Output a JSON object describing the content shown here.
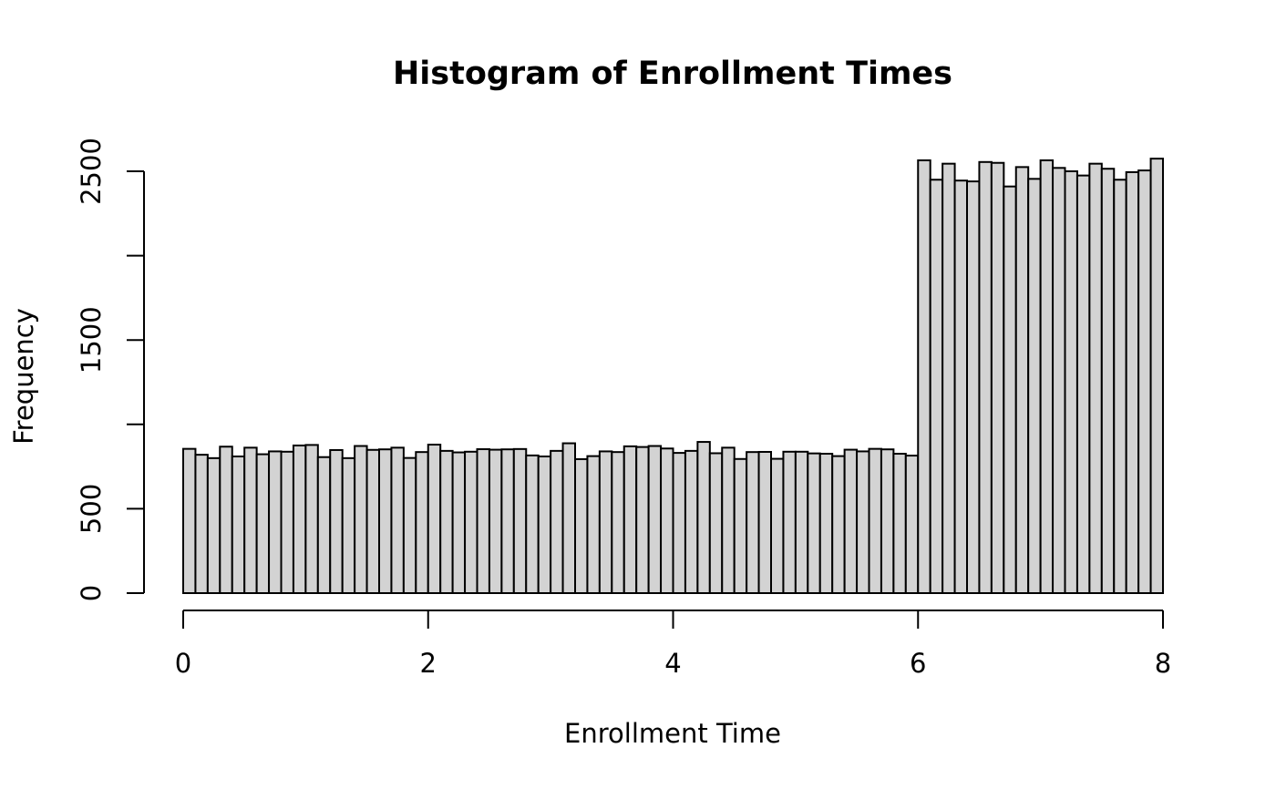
{
  "chart_data": {
    "type": "bar",
    "title": "Histogram of Enrollment Times",
    "xlabel": "Enrollment Time",
    "ylabel": "Frequency",
    "xlim": [
      0,
      8
    ],
    "ylim": [
      0,
      2500
    ],
    "xticks": [
      "0",
      "2",
      "4",
      "6",
      "8"
    ],
    "yticks": [
      "0",
      "500",
      "1500",
      "2500"
    ],
    "bin_width": 0.1,
    "bin_start": 0,
    "bar_color": "#d3d3d3",
    "edge_color": "#000000",
    "values": [
      855,
      820,
      800,
      868,
      810,
      862,
      823,
      840,
      838,
      875,
      878,
      806,
      848,
      800,
      872,
      849,
      852,
      862,
      801,
      836,
      880,
      843,
      834,
      838,
      853,
      850,
      852,
      854,
      816,
      810,
      843,
      888,
      794,
      812,
      840,
      836,
      870,
      866,
      872,
      857,
      831,
      843,
      896,
      829,
      862,
      795,
      836,
      837,
      796,
      838,
      838,
      828,
      826,
      812,
      850,
      840,
      855,
      852,
      826,
      815,
      2565,
      2450,
      2545,
      2445,
      2440,
      2555,
      2550,
      2410,
      2525,
      2455,
      2565,
      2520,
      2500,
      2475,
      2545,
      2515,
      2450,
      2495,
      2505,
      2575
    ]
  }
}
